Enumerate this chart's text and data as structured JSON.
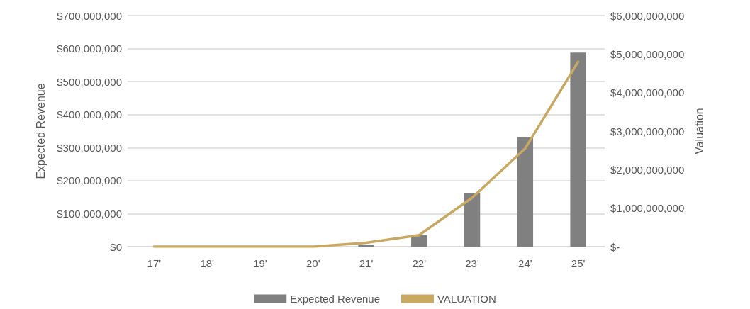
{
  "chart_data": {
    "type": "bar",
    "ylabel": "Expected Revenue",
    "y2label": "Valuation",
    "categories": [
      "17'",
      "18'",
      "19'",
      "20'",
      "21'",
      "22'",
      "23'",
      "24'",
      "25'"
    ],
    "series": [
      {
        "name": "Expected Revenue",
        "color": "#808080",
        "values": [
          0,
          0,
          0,
          0,
          5000000,
          35000000,
          163000000,
          332000000,
          588000000
        ]
      },
      {
        "name": "VALUATION",
        "type": "line",
        "axis": "y2",
        "color": "#c9a961",
        "values": [
          0,
          0,
          0,
          0,
          100000000,
          300000000,
          1270000000,
          2550000000,
          4800000000
        ]
      }
    ],
    "ylim": [
      0,
      700000000
    ],
    "yticks": [
      {
        "value": 0,
        "label": "$0"
      },
      {
        "value": 100000000,
        "label": "$100,000,000"
      },
      {
        "value": 200000000,
        "label": "$200,000,000"
      },
      {
        "value": 300000000,
        "label": "$300,000,000"
      },
      {
        "value": 400000000,
        "label": "$400,000,000"
      },
      {
        "value": 500000000,
        "label": "$500,000,000"
      },
      {
        "value": 600000000,
        "label": "$600,000,000"
      },
      {
        "value": 700000000,
        "label": "$700,000,000"
      }
    ],
    "y2lim": [
      0,
      6000000000
    ],
    "y2ticks": [
      {
        "value": 0,
        "label": "$-"
      },
      {
        "value": 1000000000,
        "label": "$1,000,000,000"
      },
      {
        "value": 2000000000,
        "label": "$2,000,000,000"
      },
      {
        "value": 3000000000,
        "label": "$3,000,000,000"
      },
      {
        "value": 4000000000,
        "label": "$4,000,000,000"
      },
      {
        "value": 5000000000,
        "label": "$5,000,000,000"
      },
      {
        "value": 6000000000,
        "label": "$6,000,000,000"
      }
    ],
    "grid": "y",
    "legend": "bottom",
    "marker": "none"
  }
}
